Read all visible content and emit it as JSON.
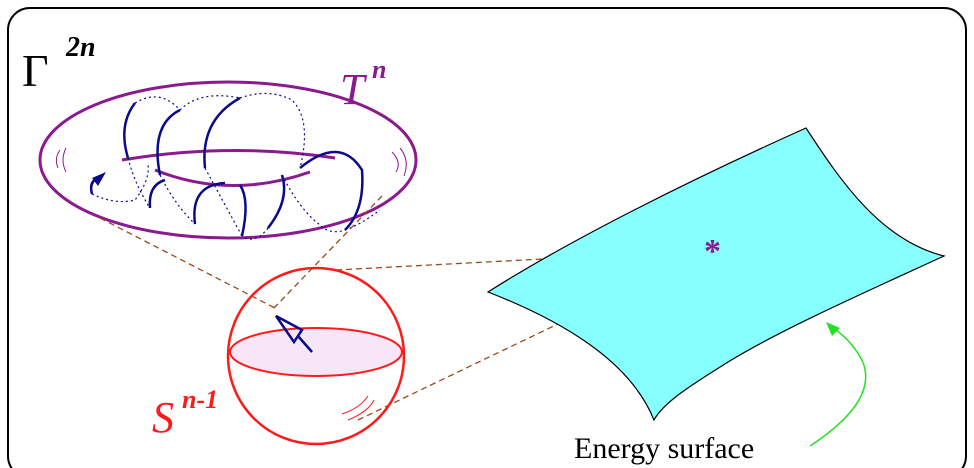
{
  "labels": {
    "phase_space": "Γ",
    "phase_space_exp": "2n",
    "torus": "T",
    "torus_exp": "n",
    "sphere": "S",
    "sphere_exp": "n-1",
    "energy_surface": "Energy surface",
    "point_marker": "*"
  },
  "colors": {
    "frame": "#000000",
    "torus": "#8b1a8f",
    "trajectory": "#0a0a8a",
    "sphere": "#ff1a1a",
    "sphere_fill": "#f7e6f7",
    "surface_fill": "#88ffff",
    "dashed_link": "#9b4a1a",
    "arrow": "#22e022",
    "marker": "#8b1a8f"
  }
}
